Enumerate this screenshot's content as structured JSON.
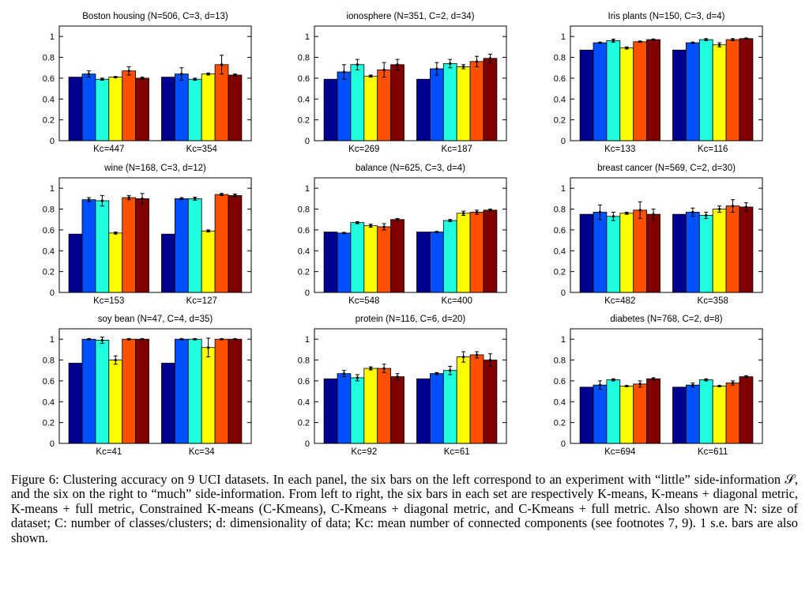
{
  "colors": [
    "#00008f",
    "#0050ff",
    "#20ffdf",
    "#ffff00",
    "#ff5000",
    "#800000"
  ],
  "chart_data": [
    {
      "type": "bar",
      "title": "Boston housing (N=506, C=3, d=13)",
      "categories": [
        "Kc=447",
        "Kc=354"
      ],
      "ylim": [
        0,
        1.1
      ],
      "yticks": [
        0,
        0.2,
        0.4,
        0.6,
        0.8,
        1
      ],
      "series": [
        {
          "values": [
            0.61,
            0.61
          ],
          "errors": [
            0,
            0
          ]
        },
        {
          "values": [
            0.64,
            0.64
          ],
          "errors": [
            0.03,
            0.06
          ]
        },
        {
          "values": [
            0.59,
            0.59
          ],
          "errors": [
            0.01,
            0.01
          ]
        },
        {
          "values": [
            0.61,
            0.64
          ],
          "errors": [
            0.005,
            0.01
          ]
        },
        {
          "values": [
            0.67,
            0.73
          ],
          "errors": [
            0.04,
            0.09
          ]
        },
        {
          "values": [
            0.6,
            0.63
          ],
          "errors": [
            0.01,
            0.01
          ]
        }
      ]
    },
    {
      "type": "bar",
      "title": "ionosphere (N=351, C=2, d=34)",
      "categories": [
        "Kc=269",
        "Kc=187"
      ],
      "ylim": [
        0,
        1.1
      ],
      "yticks": [
        0,
        0.2,
        0.4,
        0.6,
        0.8,
        1
      ],
      "series": [
        {
          "values": [
            0.59,
            0.59
          ],
          "errors": [
            0,
            0
          ]
        },
        {
          "values": [
            0.66,
            0.69
          ],
          "errors": [
            0.07,
            0.06
          ]
        },
        {
          "values": [
            0.73,
            0.74
          ],
          "errors": [
            0.05,
            0.04
          ]
        },
        {
          "values": [
            0.62,
            0.71
          ],
          "errors": [
            0.01,
            0.02
          ]
        },
        {
          "values": [
            0.68,
            0.76
          ],
          "errors": [
            0.07,
            0.05
          ]
        },
        {
          "values": [
            0.73,
            0.79
          ],
          "errors": [
            0.05,
            0.04
          ]
        }
      ]
    },
    {
      "type": "bar",
      "title": "Iris plants (N=150, C=3, d=4)",
      "categories": [
        "Kc=133",
        "Kc=116"
      ],
      "ylim": [
        0,
        1.1
      ],
      "yticks": [
        0,
        0.2,
        0.4,
        0.6,
        0.8,
        1
      ],
      "series": [
        {
          "values": [
            0.87,
            0.87
          ],
          "errors": [
            0,
            0
          ]
        },
        {
          "values": [
            0.94,
            0.94
          ],
          "errors": [
            0.005,
            0.005
          ]
        },
        {
          "values": [
            0.96,
            0.97
          ],
          "errors": [
            0.015,
            0.01
          ]
        },
        {
          "values": [
            0.89,
            0.92
          ],
          "errors": [
            0.01,
            0.02
          ]
        },
        {
          "values": [
            0.95,
            0.97
          ],
          "errors": [
            0.005,
            0.01
          ]
        },
        {
          "values": [
            0.97,
            0.98
          ],
          "errors": [
            0.005,
            0.005
          ]
        }
      ]
    },
    {
      "type": "bar",
      "title": "wine (N=168, C=3, d=12)",
      "categories": [
        "Kc=153",
        "Kc=127"
      ],
      "ylim": [
        0,
        1.1
      ],
      "yticks": [
        0,
        0.2,
        0.4,
        0.6,
        0.8,
        1
      ],
      "series": [
        {
          "values": [
            0.56,
            0.56
          ],
          "errors": [
            0,
            0
          ]
        },
        {
          "values": [
            0.89,
            0.9
          ],
          "errors": [
            0.02,
            0.01
          ]
        },
        {
          "values": [
            0.88,
            0.9
          ],
          "errors": [
            0.05,
            0.015
          ]
        },
        {
          "values": [
            0.57,
            0.59
          ],
          "errors": [
            0.01,
            0.01
          ]
        },
        {
          "values": [
            0.91,
            0.94
          ],
          "errors": [
            0.02,
            0.01
          ]
        },
        {
          "values": [
            0.9,
            0.93
          ],
          "errors": [
            0.05,
            0.015
          ]
        }
      ]
    },
    {
      "type": "bar",
      "title": "balance (N=625, C=3, d=4)",
      "categories": [
        "Kc=548",
        "Kc=400"
      ],
      "ylim": [
        0,
        1.1
      ],
      "yticks": [
        0,
        0.2,
        0.4,
        0.6,
        0.8,
        1
      ],
      "series": [
        {
          "values": [
            0.58,
            0.58
          ],
          "errors": [
            0,
            0
          ]
        },
        {
          "values": [
            0.57,
            0.58
          ],
          "errors": [
            0.005,
            0.005
          ]
        },
        {
          "values": [
            0.67,
            0.69
          ],
          "errors": [
            0.01,
            0.01
          ]
        },
        {
          "values": [
            0.64,
            0.76
          ],
          "errors": [
            0.015,
            0.02
          ]
        },
        {
          "values": [
            0.63,
            0.77
          ],
          "errors": [
            0.03,
            0.02
          ]
        },
        {
          "values": [
            0.7,
            0.79
          ],
          "errors": [
            0.01,
            0.01
          ]
        }
      ]
    },
    {
      "type": "bar",
      "title": "breast cancer (N=569, C=2, d=30)",
      "categories": [
        "Kc=482",
        "Kc=358"
      ],
      "ylim": [
        0,
        1.1
      ],
      "yticks": [
        0,
        0.2,
        0.4,
        0.6,
        0.8,
        1
      ],
      "series": [
        {
          "values": [
            0.75,
            0.75
          ],
          "errors": [
            0,
            0
          ]
        },
        {
          "values": [
            0.77,
            0.77
          ],
          "errors": [
            0.07,
            0.04
          ]
        },
        {
          "values": [
            0.73,
            0.74
          ],
          "errors": [
            0.04,
            0.03
          ]
        },
        {
          "values": [
            0.76,
            0.8
          ],
          "errors": [
            0.01,
            0.03
          ]
        },
        {
          "values": [
            0.79,
            0.83
          ],
          "errors": [
            0.08,
            0.06
          ]
        },
        {
          "values": [
            0.75,
            0.82
          ],
          "errors": [
            0.05,
            0.04
          ]
        }
      ]
    },
    {
      "type": "bar",
      "title": "soy bean (N=47, C=4, d=35)",
      "categories": [
        "Kc=41",
        "Kc=34"
      ],
      "ylim": [
        0,
        1.1
      ],
      "yticks": [
        0,
        0.2,
        0.4,
        0.6,
        0.8,
        1
      ],
      "series": [
        {
          "values": [
            0.77,
            0.77
          ],
          "errors": [
            0,
            0
          ]
        },
        {
          "values": [
            1.0,
            1.0
          ],
          "errors": [
            0.005,
            0.005
          ]
        },
        {
          "values": [
            0.99,
            1.0
          ],
          "errors": [
            0.03,
            0.005
          ]
        },
        {
          "values": [
            0.8,
            0.92
          ],
          "errors": [
            0.04,
            0.09
          ]
        },
        {
          "values": [
            1.0,
            1.0
          ],
          "errors": [
            0.005,
            0.005
          ]
        },
        {
          "values": [
            1.0,
            1.0
          ],
          "errors": [
            0.005,
            0.005
          ]
        }
      ]
    },
    {
      "type": "bar",
      "title": "protein (N=116, C=6, d=20)",
      "categories": [
        "Kc=92",
        "Kc=61"
      ],
      "ylim": [
        0,
        1.1
      ],
      "yticks": [
        0,
        0.2,
        0.4,
        0.6,
        0.8,
        1
      ],
      "series": [
        {
          "values": [
            0.62,
            0.62
          ],
          "errors": [
            0,
            0
          ]
        },
        {
          "values": [
            0.67,
            0.67
          ],
          "errors": [
            0.03,
            0.01
          ]
        },
        {
          "values": [
            0.63,
            0.7
          ],
          "errors": [
            0.03,
            0.04
          ]
        },
        {
          "values": [
            0.72,
            0.83
          ],
          "errors": [
            0.015,
            0.05
          ]
        },
        {
          "values": [
            0.72,
            0.85
          ],
          "errors": [
            0.04,
            0.03
          ]
        },
        {
          "values": [
            0.64,
            0.8
          ],
          "errors": [
            0.03,
            0.06
          ]
        }
      ]
    },
    {
      "type": "bar",
      "title": "diabetes (N=768, C=2, d=8)",
      "categories": [
        "Kc=694",
        "Kc=611"
      ],
      "ylim": [
        0,
        1.1
      ],
      "yticks": [
        0,
        0.2,
        0.4,
        0.6,
        0.8,
        1
      ],
      "series": [
        {
          "values": [
            0.54,
            0.54
          ],
          "errors": [
            0,
            0
          ]
        },
        {
          "values": [
            0.56,
            0.56
          ],
          "errors": [
            0.04,
            0.02
          ]
        },
        {
          "values": [
            0.61,
            0.61
          ],
          "errors": [
            0.01,
            0.01
          ]
        },
        {
          "values": [
            0.55,
            0.55
          ],
          "errors": [
            0.005,
            0.005
          ]
        },
        {
          "values": [
            0.57,
            0.58
          ],
          "errors": [
            0.03,
            0.02
          ]
        },
        {
          "values": [
            0.62,
            0.64
          ],
          "errors": [
            0.01,
            0.01
          ]
        }
      ]
    }
  ],
  "caption": "Figure 6: Clustering accuracy on 9 UCI datasets. In each panel, the six bars on the left correspond to an experiment with “little” side-information 𝒮, and the six on the right to “much” side-information. From left to right, the six bars in each set are respectively K-means, K-means + diagonal metric, K-means + full metric, Constrained K-means (C-Kmeans), C-Kmeans + diagonal metric, and C-Kmeans + full metric. Also shown are N: size of dataset; C: number of classes/clusters; d: dimensionality of data; Kc: mean number of connected components (see footnotes 7, 9). 1 s.e. bars are also shown."
}
